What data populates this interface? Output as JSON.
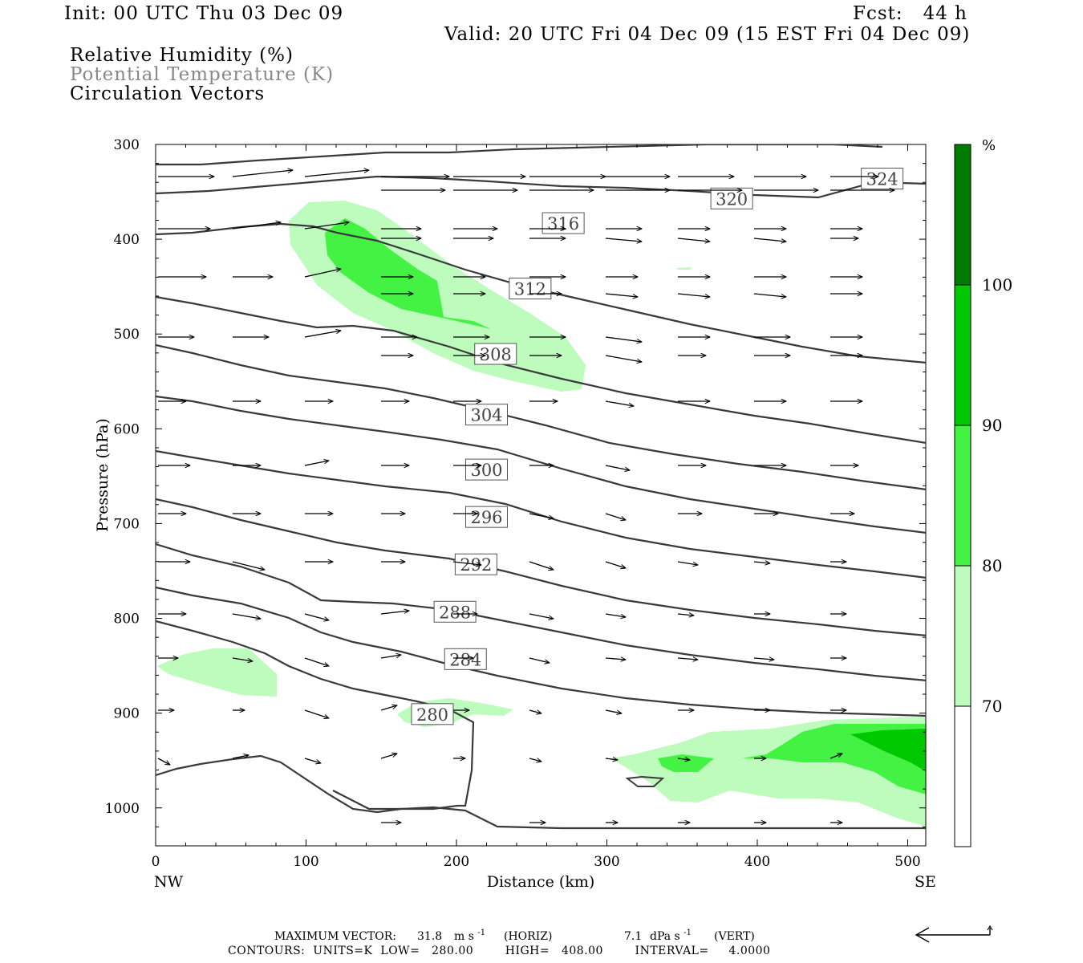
{
  "header": {
    "init": "Init: 00 UTC Thu 03 Dec 09",
    "fcst": "Fcst:   44 h",
    "valid": "Valid: 20 UTC Fri 04 Dec 09 (15 EST Fri 04 Dec 09)",
    "field1": "Relative Humidity (%)",
    "field2": "Potential Temperature (K)",
    "field3": "Circulation Vectors"
  },
  "footer": {
    "max_vector_label": "MAXIMUM VECTOR:",
    "horiz_value": "31.8",
    "horiz_units": "m s",
    "horiz_tag": "(HORIZ)",
    "vert_value": "7.1",
    "vert_units": "dPa s",
    "vert_tag": "(VERT)",
    "exponent": "-1",
    "contours_line": "CONTOURS:  UNITS=K  LOW=   280.00        HIGH=   408.00        INTERVAL=     4.0000"
  },
  "chart_data": {
    "type": "contour",
    "xlabel": "Distance (km)",
    "ylabel": "Pressure (hPa)",
    "x_left_label": "NW",
    "x_right_label": "SE",
    "xlim": [
      0,
      512
    ],
    "ylim": [
      1040,
      300
    ],
    "xticks": [
      0,
      100,
      200,
      300,
      400,
      500
    ],
    "yticks": [
      300,
      400,
      500,
      600,
      700,
      800,
      900,
      1000
    ],
    "shading": {
      "variable": "Relative Humidity",
      "units": "%",
      "levels": [
        70,
        80,
        90,
        100
      ],
      "colors": [
        "#ffffff",
        "#bdfcbd",
        "#44f244",
        "#00c800",
        "#007a00"
      ]
    },
    "theta_contours": {
      "variable": "Potential Temperature",
      "units": "K",
      "labels": [
        280,
        284,
        288,
        292,
        296,
        300,
        304,
        308,
        312,
        316,
        320,
        324
      ],
      "label_positions": [
        {
          "value": 280,
          "x": 184,
          "p": 901
        },
        {
          "value": 284,
          "x": 206,
          "p": 843
        },
        {
          "value": 288,
          "x": 199,
          "p": 793
        },
        {
          "value": 292,
          "x": 213,
          "p": 743
        },
        {
          "value": 296,
          "x": 220,
          "p": 693
        },
        {
          "value": 300,
          "x": 220,
          "p": 643
        },
        {
          "value": 304,
          "x": 220,
          "p": 585
        },
        {
          "value": 308,
          "x": 226,
          "p": 521
        },
        {
          "value": 312,
          "x": 249,
          "p": 452
        },
        {
          "value": 316,
          "x": 271,
          "p": 383
        },
        {
          "value": 320,
          "x": 383,
          "p": 357
        },
        {
          "value": 324,
          "x": 483,
          "p": 336
        }
      ]
    },
    "vectors": {
      "variable": "Circulation Vectors",
      "max_horiz": "31.8 m s-1",
      "max_vert": "7.1 dPa s-1"
    }
  }
}
